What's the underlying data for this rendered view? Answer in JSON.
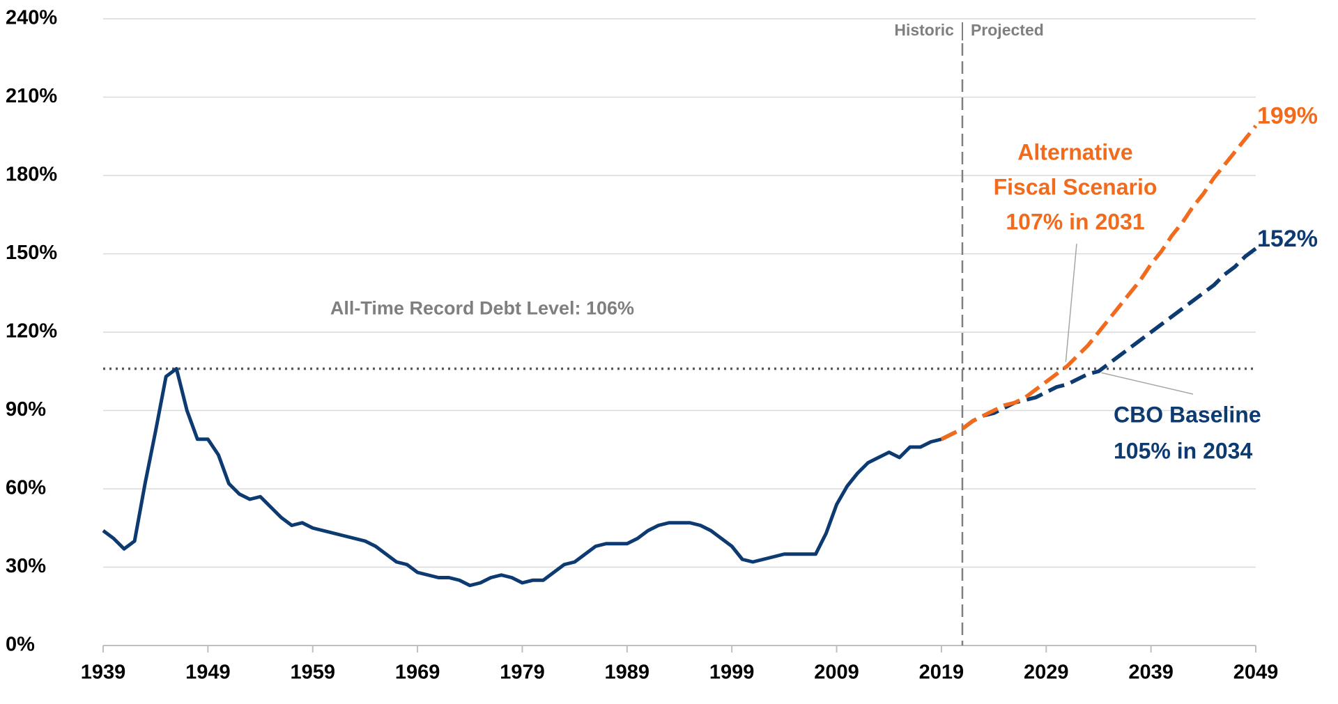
{
  "chart_data": {
    "type": "line",
    "xlim": [
      1939,
      2049
    ],
    "xticks": [
      1939,
      1949,
      1959,
      1969,
      1979,
      1989,
      1999,
      2009,
      2019,
      2029,
      2039,
      2049
    ],
    "ylim": [
      0,
      240
    ],
    "yticks": [
      {
        "value": 0,
        "label": "0%"
      },
      {
        "value": 30,
        "label": "30%"
      },
      {
        "value": 60,
        "label": "60%"
      },
      {
        "value": 90,
        "label": "90%"
      },
      {
        "value": 120,
        "label": "120%"
      },
      {
        "value": 150,
        "label": "150%"
      },
      {
        "value": 180,
        "label": "180%"
      },
      {
        "value": 210,
        "label": "210%"
      },
      {
        "value": 240,
        "label": "240%"
      }
    ],
    "grid": true,
    "record_value": 106,
    "record_label": "All-Time Record Debt Level: 106%",
    "divider_x": 2021,
    "historic_label": "Historic",
    "projected_label": "Projected",
    "series": [
      {
        "color": "#0d3a70",
        "dashed": false,
        "x": [
          1939,
          1940,
          1941,
          1942,
          1943,
          1944,
          1945,
          1946,
          1947,
          1948,
          1949,
          1950,
          1951,
          1952,
          1953,
          1954,
          1955,
          1956,
          1957,
          1958,
          1959,
          1960,
          1961,
          1962,
          1963,
          1964,
          1965,
          1966,
          1967,
          1968,
          1969,
          1970,
          1971,
          1972,
          1973,
          1974,
          1975,
          1976,
          1977,
          1978,
          1979,
          1980,
          1981,
          1982,
          1983,
          1984,
          1985,
          1986,
          1987,
          1988,
          1989,
          1990,
          1991,
          1992,
          1993,
          1994,
          1995,
          1996,
          1997,
          1998,
          1999,
          2000,
          2001,
          2002,
          2003,
          2004,
          2005,
          2006,
          2007,
          2008,
          2009,
          2010,
          2011,
          2012,
          2013,
          2014,
          2015,
          2016,
          2017,
          2018,
          2019
        ],
        "values": [
          44,
          41,
          37,
          40,
          62,
          82,
          103,
          106,
          90,
          79,
          79,
          73,
          62,
          58,
          56,
          57,
          53,
          49,
          46,
          47,
          45,
          44,
          43,
          42,
          41,
          40,
          38,
          35,
          32,
          31,
          28,
          27,
          26,
          26,
          25,
          23,
          24,
          26,
          27,
          26,
          24,
          25,
          25,
          28,
          31,
          32,
          35,
          38,
          39,
          39,
          39,
          41,
          44,
          46,
          47,
          47,
          47,
          46,
          44,
          41,
          38,
          33,
          32,
          33,
          34,
          35,
          35,
          35,
          35,
          43,
          54,
          61,
          66,
          70,
          72,
          74,
          72,
          76,
          76,
          78,
          79
        ]
      },
      {
        "name": "CBO Baseline",
        "note": "105% in 2034",
        "callout_index": 15,
        "color": "#0d3a70",
        "dashed": true,
        "x": [
          2019,
          2020,
          2021,
          2022,
          2023,
          2024,
          2025,
          2026,
          2027,
          2028,
          2029,
          2030,
          2031,
          2032,
          2033,
          2034,
          2035,
          2036,
          2037,
          2038,
          2039,
          2040,
          2041,
          2042,
          2043,
          2044,
          2045,
          2046,
          2047,
          2048,
          2049
        ],
        "values": [
          79,
          81,
          83,
          86,
          88,
          89,
          91,
          93,
          94,
          95,
          97,
          99,
          100,
          102,
          104,
          105,
          108,
          111,
          114,
          117,
          120,
          123,
          126,
          129,
          132,
          135,
          138,
          142,
          145,
          149,
          152
        ],
        "value_labels": [
          null,
          null,
          null,
          null,
          null,
          null,
          null,
          null,
          null,
          null,
          null,
          null,
          null,
          null,
          null,
          null,
          null,
          null,
          null,
          null,
          null,
          null,
          null,
          null,
          null,
          null,
          null,
          null,
          null,
          null,
          "152%"
        ]
      },
      {
        "name_lines": [
          "Alternative",
          "Fiscal Scenario"
        ],
        "note": "107% in 2031",
        "callout_index": 12,
        "color": "#f26b1d",
        "dashed": true,
        "x": [
          2019,
          2020,
          2021,
          2022,
          2023,
          2024,
          2025,
          2026,
          2027,
          2028,
          2029,
          2030,
          2031,
          2032,
          2033,
          2034,
          2035,
          2036,
          2037,
          2038,
          2039,
          2040,
          2041,
          2042,
          2043,
          2044,
          2045,
          2046,
          2047,
          2048,
          2049
        ],
        "values": [
          79,
          81,
          83,
          86,
          88,
          90,
          92,
          93,
          95,
          98,
          101,
          104,
          107,
          111,
          115,
          120,
          125,
          130,
          135,
          140,
          146,
          151,
          157,
          162,
          168,
          173,
          179,
          184,
          189,
          194,
          199
        ],
        "value_labels": [
          null,
          null,
          null,
          null,
          null,
          null,
          null,
          null,
          null,
          null,
          null,
          null,
          null,
          null,
          null,
          null,
          null,
          null,
          null,
          null,
          null,
          null,
          null,
          null,
          null,
          null,
          null,
          null,
          null,
          null,
          "199%"
        ]
      }
    ]
  }
}
